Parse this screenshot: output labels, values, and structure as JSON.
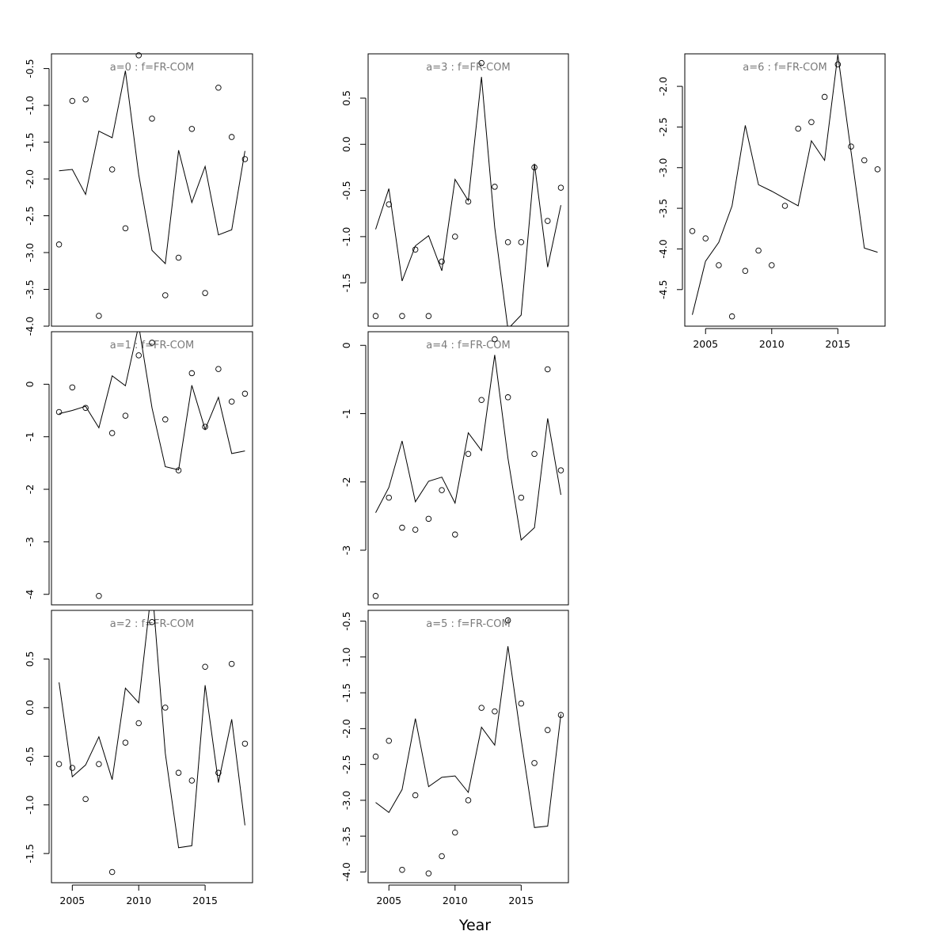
{
  "figure": {
    "xlabel": "Year"
  },
  "chart_data": [
    {
      "type": "line",
      "title": "a=0  :  f=FR-COM",
      "x": [
        2004,
        2005,
        2006,
        2007,
        2008,
        2009,
        2010,
        2011,
        2012,
        2013,
        2014,
        2015,
        2016,
        2017,
        2018
      ],
      "series": [
        {
          "style": "line",
          "values": [
            -1.89,
            -1.87,
            -2.21,
            -1.35,
            -1.44,
            -0.53,
            -1.94,
            -2.97,
            -3.15,
            -1.61,
            -2.32,
            -1.83,
            -2.76,
            -2.69,
            -1.62
          ]
        },
        {
          "style": "points",
          "values": [
            -2.89,
            -0.94,
            -0.92,
            -3.86,
            -1.87,
            -2.67,
            -0.32,
            -1.18,
            -3.58,
            -3.07,
            -1.32,
            -3.55,
            -0.76,
            -1.43,
            -1.73
          ]
        }
      ],
      "ylim": [
        -4.0,
        -0.3
      ],
      "yticks": [
        -4.0,
        -3.5,
        -3.0,
        -2.5,
        -2.0,
        -1.5,
        -1.0,
        -0.5
      ],
      "ytick_labels": [
        "-4.0",
        "-3.5",
        "-3.0",
        "-2.5",
        "-2.0",
        "-1.5",
        "-1.0",
        "-0.5"
      ],
      "xticks": [],
      "xtick_labels": []
    },
    {
      "type": "line",
      "title": "a=1  :  f=FR-COM",
      "x": [
        2004,
        2005,
        2006,
        2007,
        2008,
        2009,
        2010,
        2011,
        2012,
        2013,
        2014,
        2015,
        2016,
        2017,
        2018
      ],
      "series": [
        {
          "style": "line",
          "values": [
            -0.56,
            -0.5,
            -0.42,
            -0.83,
            0.16,
            -0.03,
            1.12,
            -0.45,
            -1.57,
            -1.63,
            -0.02,
            -0.86,
            -0.25,
            -1.32,
            -1.27
          ]
        },
        {
          "style": "points",
          "values": [
            -0.53,
            -0.06,
            -0.45,
            -4.03,
            -0.93,
            -0.6,
            0.55,
            0.79,
            -0.67,
            -1.64,
            0.21,
            -0.81,
            0.29,
            -0.33,
            -0.18
          ]
        }
      ],
      "ylim": [
        -4.2,
        1.0
      ],
      "yticks": [
        -4,
        -3,
        -2,
        -1,
        0
      ],
      "ytick_labels": [
        "-4",
        "-3",
        "-2",
        "-1",
        "0"
      ],
      "xticks": [],
      "xtick_labels": []
    },
    {
      "type": "line",
      "title": "a=2  :  f=FR-COM",
      "x": [
        2004,
        2005,
        2006,
        2007,
        2008,
        2009,
        2010,
        2011,
        2012,
        2013,
        2014,
        2015,
        2016,
        2017,
        2018
      ],
      "series": [
        {
          "style": "line",
          "values": [
            0.26,
            -0.71,
            -0.59,
            -0.3,
            -0.74,
            0.2,
            0.05,
            1.26,
            -0.47,
            -1.44,
            -1.42,
            0.23,
            -0.77,
            -0.12,
            -1.21
          ]
        },
        {
          "style": "points",
          "values": [
            -0.58,
            -0.62,
            -0.94,
            -0.58,
            -1.69,
            -0.36,
            -0.16,
            0.88,
            0.0,
            -0.67,
            -0.75,
            0.42,
            -0.67,
            0.45,
            -0.37
          ]
        }
      ],
      "ylim": [
        -1.8,
        1.0
      ],
      "yticks": [
        -1.5,
        -1.0,
        -0.5,
        0.0,
        0.5
      ],
      "ytick_labels": [
        "-1.5",
        "-1.0",
        "-0.5",
        "0.0",
        "0.5"
      ],
      "xticks": [
        2005,
        2010,
        2015
      ],
      "xtick_labels": [
        "2005",
        "2010",
        "2015"
      ]
    },
    {
      "type": "line",
      "title": "a=3  :  f=FR-COM",
      "x": [
        2004,
        2005,
        2006,
        2007,
        2008,
        2009,
        2010,
        2011,
        2012,
        2013,
        2014,
        2015,
        2016,
        2017,
        2018
      ],
      "series": [
        {
          "style": "line",
          "values": [
            -0.92,
            -0.48,
            -1.48,
            -1.1,
            -0.99,
            -1.37,
            -0.38,
            -0.61,
            0.73,
            -0.9,
            -2.0,
            -1.85,
            -0.21,
            -1.33,
            -0.66
          ]
        },
        {
          "style": "points",
          "values": [
            -1.86,
            -0.65,
            -1.86,
            -1.14,
            -1.86,
            -1.27,
            -1.0,
            -0.62,
            0.88,
            -0.46,
            -1.06,
            -1.06,
            -0.25,
            -0.83,
            -0.47
          ]
        }
      ],
      "ylim": [
        -1.97,
        0.98
      ],
      "yticks": [
        -1.5,
        -1.0,
        -0.5,
        0.0,
        0.5
      ],
      "ytick_labels": [
        "-1.5",
        "-1.0",
        "-0.5",
        "0.0",
        "0.5"
      ],
      "xticks": [],
      "xtick_labels": []
    },
    {
      "type": "line",
      "title": "a=4  :  f=FR-COM",
      "x": [
        2004,
        2005,
        2006,
        2007,
        2008,
        2009,
        2010,
        2011,
        2012,
        2013,
        2014,
        2015,
        2016,
        2017,
        2018
      ],
      "series": [
        {
          "style": "line",
          "values": [
            -2.45,
            -2.08,
            -1.4,
            -2.29,
            -1.99,
            -1.93,
            -2.31,
            -1.28,
            -1.54,
            -0.14,
            -1.65,
            -2.85,
            -2.67,
            -1.07,
            -2.19
          ]
        },
        {
          "style": "points",
          "values": [
            -3.67,
            -2.23,
            -2.67,
            -2.7,
            -2.54,
            -2.12,
            -2.77,
            -1.59,
            -0.8,
            0.09,
            -0.76,
            -2.23,
            -1.59,
            -0.35,
            -1.83
          ]
        }
      ],
      "ylim": [
        -3.8,
        0.2
      ],
      "yticks": [
        -3,
        -2,
        -1,
        0
      ],
      "ytick_labels": [
        "-3",
        "-2",
        "-1",
        "0"
      ],
      "xticks": [],
      "xtick_labels": []
    },
    {
      "type": "line",
      "title": "a=5  :  f=FR-COM",
      "x": [
        2004,
        2005,
        2006,
        2007,
        2008,
        2009,
        2010,
        2011,
        2012,
        2013,
        2014,
        2015,
        2016,
        2017,
        2018
      ],
      "series": [
        {
          "style": "line",
          "values": [
            -3.03,
            -3.17,
            -2.85,
            -1.86,
            -2.81,
            -2.68,
            -2.66,
            -2.89,
            -1.98,
            -2.23,
            -0.85,
            -2.15,
            -3.38,
            -3.36,
            -1.8
          ]
        },
        {
          "style": "points",
          "values": [
            -2.39,
            -2.17,
            -3.97,
            -2.93,
            -4.02,
            -3.78,
            -3.45,
            -3.0,
            -1.71,
            -1.76,
            -0.49,
            -1.65,
            -2.48,
            -2.02,
            -1.81
          ]
        }
      ],
      "ylim": [
        -4.15,
        -0.35
      ],
      "yticks": [
        -4.0,
        -3.5,
        -3.0,
        -2.5,
        -2.0,
        -1.5,
        -1.0,
        -0.5
      ],
      "ytick_labels": [
        "-4.0",
        "-3.5",
        "-3.0",
        "-2.5",
        "-2.0",
        "-1.5",
        "-1.0",
        "-0.5"
      ],
      "xticks": [
        2005,
        2010,
        2015
      ],
      "xtick_labels": [
        "2005",
        "2010",
        "2015"
      ]
    },
    {
      "type": "line",
      "title": "a=6  :  f=FR-COM",
      "x": [
        2004,
        2005,
        2006,
        2007,
        2008,
        2009,
        2010,
        2011,
        2012,
        2013,
        2014,
        2015,
        2016,
        2017,
        2018
      ],
      "series": [
        {
          "style": "line",
          "values": [
            -4.81,
            -4.15,
            -3.92,
            -3.47,
            -2.48,
            -3.21,
            -3.29,
            -3.38,
            -3.47,
            -2.67,
            -2.91,
            -1.61,
            -2.81,
            -3.99,
            -4.04
          ]
        },
        {
          "style": "points",
          "values": [
            -3.78,
            -3.87,
            -4.2,
            -4.83,
            -4.27,
            -4.02,
            -4.2,
            -3.47,
            -2.52,
            -2.44,
            -2.13,
            -1.73,
            -2.74,
            -2.91,
            -3.02
          ]
        }
      ],
      "ylim": [
        -4.95,
        -1.6
      ],
      "yticks": [
        -4.5,
        -4.0,
        -3.5,
        -3.0,
        -2.5,
        -2.0
      ],
      "ytick_labels": [
        "-4.5",
        "-4.0",
        "-3.5",
        "-3.0",
        "-2.5",
        "-2.0"
      ],
      "xticks": [
        2005,
        2010,
        2015
      ],
      "xtick_labels": [
        "2005",
        "2010",
        "2015"
      ]
    }
  ]
}
